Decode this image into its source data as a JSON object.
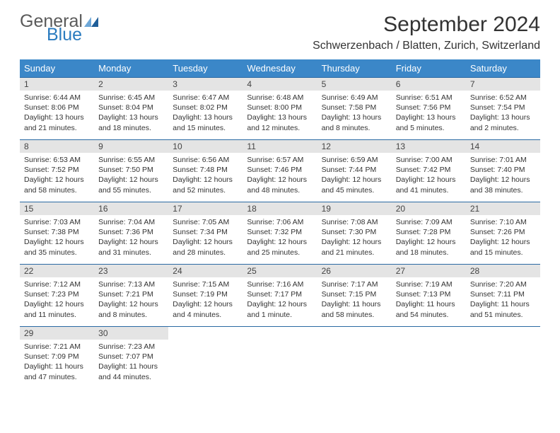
{
  "brand": {
    "general": "General",
    "blue": "Blue"
  },
  "header": {
    "month_title": "September 2024",
    "location": "Schwerzenbach / Blatten, Zurich, Switzerland"
  },
  "colors": {
    "header_bg": "#3b87c8",
    "row_border": "#2a6aa3",
    "daynum_bg": "#e4e4e4",
    "text": "#333333",
    "logo_gray": "#5a5a5a",
    "logo_blue": "#2a7bbf",
    "flag_light": "#6fa8d8",
    "flag_dark": "#1f5e99"
  },
  "weekdays": [
    "Sunday",
    "Monday",
    "Tuesday",
    "Wednesday",
    "Thursday",
    "Friday",
    "Saturday"
  ],
  "days": [
    {
      "n": "1",
      "sunrise": "6:44 AM",
      "sunset": "8:06 PM",
      "daylight": "13 hours and 21 minutes."
    },
    {
      "n": "2",
      "sunrise": "6:45 AM",
      "sunset": "8:04 PM",
      "daylight": "13 hours and 18 minutes."
    },
    {
      "n": "3",
      "sunrise": "6:47 AM",
      "sunset": "8:02 PM",
      "daylight": "13 hours and 15 minutes."
    },
    {
      "n": "4",
      "sunrise": "6:48 AM",
      "sunset": "8:00 PM",
      "daylight": "13 hours and 12 minutes."
    },
    {
      "n": "5",
      "sunrise": "6:49 AM",
      "sunset": "7:58 PM",
      "daylight": "13 hours and 8 minutes."
    },
    {
      "n": "6",
      "sunrise": "6:51 AM",
      "sunset": "7:56 PM",
      "daylight": "13 hours and 5 minutes."
    },
    {
      "n": "7",
      "sunrise": "6:52 AM",
      "sunset": "7:54 PM",
      "daylight": "13 hours and 2 minutes."
    },
    {
      "n": "8",
      "sunrise": "6:53 AM",
      "sunset": "7:52 PM",
      "daylight": "12 hours and 58 minutes."
    },
    {
      "n": "9",
      "sunrise": "6:55 AM",
      "sunset": "7:50 PM",
      "daylight": "12 hours and 55 minutes."
    },
    {
      "n": "10",
      "sunrise": "6:56 AM",
      "sunset": "7:48 PM",
      "daylight": "12 hours and 52 minutes."
    },
    {
      "n": "11",
      "sunrise": "6:57 AM",
      "sunset": "7:46 PM",
      "daylight": "12 hours and 48 minutes."
    },
    {
      "n": "12",
      "sunrise": "6:59 AM",
      "sunset": "7:44 PM",
      "daylight": "12 hours and 45 minutes."
    },
    {
      "n": "13",
      "sunrise": "7:00 AM",
      "sunset": "7:42 PM",
      "daylight": "12 hours and 41 minutes."
    },
    {
      "n": "14",
      "sunrise": "7:01 AM",
      "sunset": "7:40 PM",
      "daylight": "12 hours and 38 minutes."
    },
    {
      "n": "15",
      "sunrise": "7:03 AM",
      "sunset": "7:38 PM",
      "daylight": "12 hours and 35 minutes."
    },
    {
      "n": "16",
      "sunrise": "7:04 AM",
      "sunset": "7:36 PM",
      "daylight": "12 hours and 31 minutes."
    },
    {
      "n": "17",
      "sunrise": "7:05 AM",
      "sunset": "7:34 PM",
      "daylight": "12 hours and 28 minutes."
    },
    {
      "n": "18",
      "sunrise": "7:06 AM",
      "sunset": "7:32 PM",
      "daylight": "12 hours and 25 minutes."
    },
    {
      "n": "19",
      "sunrise": "7:08 AM",
      "sunset": "7:30 PM",
      "daylight": "12 hours and 21 minutes."
    },
    {
      "n": "20",
      "sunrise": "7:09 AM",
      "sunset": "7:28 PM",
      "daylight": "12 hours and 18 minutes."
    },
    {
      "n": "21",
      "sunrise": "7:10 AM",
      "sunset": "7:26 PM",
      "daylight": "12 hours and 15 minutes."
    },
    {
      "n": "22",
      "sunrise": "7:12 AM",
      "sunset": "7:23 PM",
      "daylight": "12 hours and 11 minutes."
    },
    {
      "n": "23",
      "sunrise": "7:13 AM",
      "sunset": "7:21 PM",
      "daylight": "12 hours and 8 minutes."
    },
    {
      "n": "24",
      "sunrise": "7:15 AM",
      "sunset": "7:19 PM",
      "daylight": "12 hours and 4 minutes."
    },
    {
      "n": "25",
      "sunrise": "7:16 AM",
      "sunset": "7:17 PM",
      "daylight": "12 hours and 1 minute."
    },
    {
      "n": "26",
      "sunrise": "7:17 AM",
      "sunset": "7:15 PM",
      "daylight": "11 hours and 58 minutes."
    },
    {
      "n": "27",
      "sunrise": "7:19 AM",
      "sunset": "7:13 PM",
      "daylight": "11 hours and 54 minutes."
    },
    {
      "n": "28",
      "sunrise": "7:20 AM",
      "sunset": "7:11 PM",
      "daylight": "11 hours and 51 minutes."
    },
    {
      "n": "29",
      "sunrise": "7:21 AM",
      "sunset": "7:09 PM",
      "daylight": "11 hours and 47 minutes."
    },
    {
      "n": "30",
      "sunrise": "7:23 AM",
      "sunset": "7:07 PM",
      "daylight": "11 hours and 44 minutes."
    }
  ],
  "labels": {
    "sunrise": "Sunrise:",
    "sunset": "Sunset:",
    "daylight": "Daylight:"
  }
}
